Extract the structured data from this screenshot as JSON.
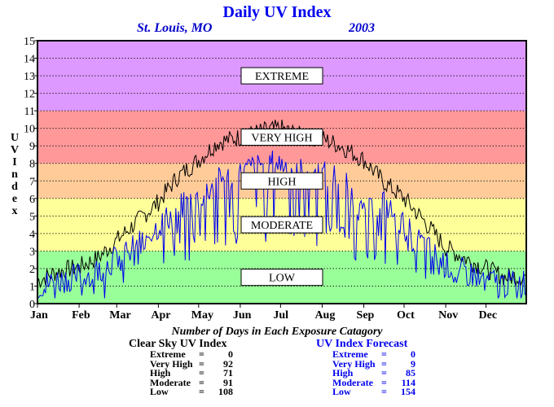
{
  "chart_data": {
    "type": "line",
    "title": "Daily UV Index",
    "subtitle_location": "St. Louis, MO",
    "subtitle_year": "2003",
    "ylabel": "UV Index",
    "ylim": [
      0,
      15
    ],
    "yticks": [
      "0",
      "1",
      "2",
      "3",
      "4",
      "5",
      "6",
      "7",
      "8",
      "9",
      "10",
      "11",
      "12",
      "13",
      "14",
      "15"
    ],
    "months": [
      "Jan",
      "Feb",
      "Mar",
      "Apr",
      "May",
      "Jun",
      "Jul",
      "Aug",
      "Sep",
      "Oct",
      "Nov",
      "Dec"
    ],
    "grid": true,
    "bands": [
      {
        "label": "LOW",
        "from": 0,
        "to": 3,
        "color": "#99ff99"
      },
      {
        "label": "MODERATE",
        "from": 3,
        "to": 6,
        "color": "#ffff99"
      },
      {
        "label": "HIGH",
        "from": 6,
        "to": 8,
        "color": "#ffcc99"
      },
      {
        "label": "VERY HIGH",
        "from": 8,
        "to": 11,
        "color": "#ff9999"
      },
      {
        "label": "EXTREME",
        "from": 11,
        "to": 15,
        "color": "#dd99ff"
      }
    ],
    "series": [
      {
        "name": "Clear Sky UV Index",
        "color": "#000000",
        "x": [
          1,
          15,
          32,
          46,
          60,
          74,
          91,
          105,
          121,
          135,
          152,
          166,
          182,
          196,
          213,
          227,
          244,
          258,
          274,
          288,
          305,
          319,
          335,
          349,
          365
        ],
        "values": [
          1.3,
          1.8,
          2.1,
          2.6,
          3.6,
          4.6,
          5.8,
          7.2,
          8.2,
          9.2,
          9.5,
          9.8,
          10,
          9.6,
          9.4,
          9.0,
          8.2,
          7.0,
          6.0,
          4.8,
          3.2,
          2.6,
          2.0,
          1.5,
          1.6
        ]
      },
      {
        "name": "UV Index Forecast",
        "color": "#0000ee",
        "x": [
          1,
          15,
          32,
          46,
          60,
          74,
          91,
          105,
          121,
          135,
          152,
          166,
          182,
          196,
          213,
          227,
          244,
          258,
          274,
          288,
          305,
          319,
          335,
          349,
          365
        ],
        "values": [
          1.0,
          1.3,
          1.6,
          1.9,
          2.6,
          3.5,
          4.4,
          5.4,
          6.0,
          7.0,
          7.4,
          8.0,
          8.0,
          7.6,
          7.4,
          7.2,
          5.0,
          5.8,
          4.4,
          3.4,
          2.2,
          1.8,
          1.4,
          1.1,
          1.3
        ]
      }
    ]
  },
  "stats": {
    "heading": "Number of Days in Each Exposure Catagory",
    "clear_sky": {
      "title": "Clear Sky UV Index",
      "rows": [
        {
          "label": "Extreme",
          "value": "0"
        },
        {
          "label": "Very High",
          "value": "92"
        },
        {
          "label": "High",
          "value": "71"
        },
        {
          "label": "Moderate",
          "value": "91"
        },
        {
          "label": "Low",
          "value": "108"
        }
      ]
    },
    "forecast": {
      "title": "UV Index Forecast",
      "rows": [
        {
          "label": "Extreme",
          "value": "0"
        },
        {
          "label": "Very High",
          "value": "9"
        },
        {
          "label": "High",
          "value": "85"
        },
        {
          "label": "Moderate",
          "value": "114"
        },
        {
          "label": "Low",
          "value": "154"
        }
      ]
    }
  }
}
